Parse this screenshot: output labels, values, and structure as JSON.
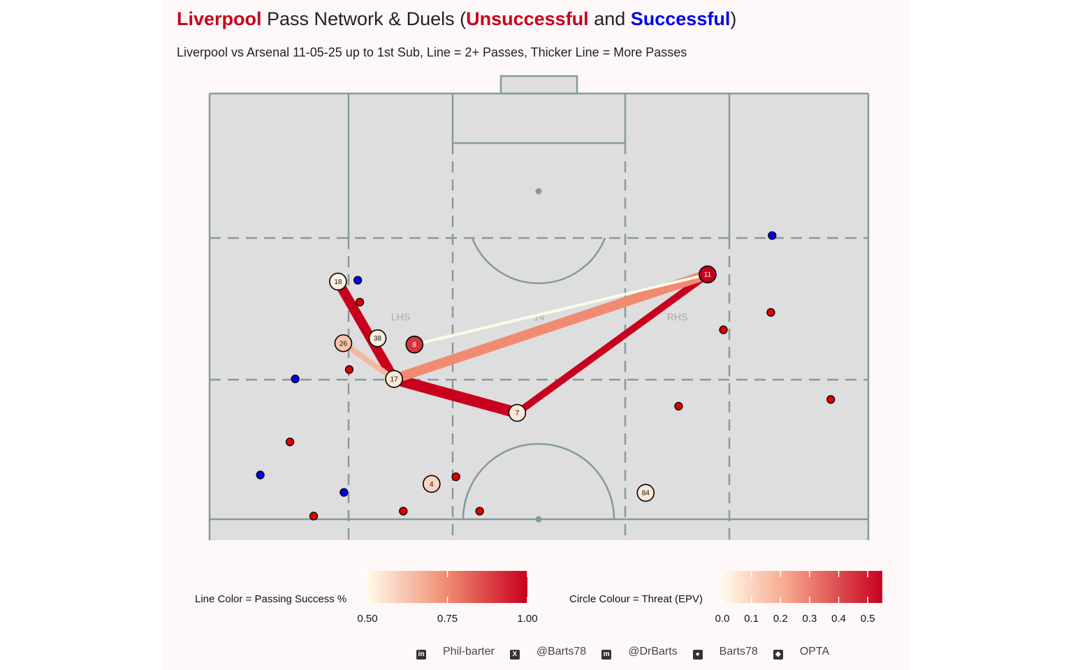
{
  "title": {
    "team": "Liverpool",
    "middle": " Pass Network & Duels (",
    "unsuccessful": "Unsuccessful",
    "and": " and ",
    "successful": "Successful",
    "close": ")",
    "team_color": "#c8001e",
    "successful_color": "#0000ee"
  },
  "subtitle": "Liverpool vs Arsenal 11-05-25 up to 1st Sub, Line = 2+ Passes, Thicker Line = More Passes",
  "chart_data": {
    "type": "network",
    "x_range": [
      0,
      100
    ],
    "y_range": [
      0,
      100
    ],
    "zone_labels": [
      {
        "text": "LHS",
        "x": 29,
        "y": 50
      },
      {
        "text": "14",
        "x": 50,
        "y": 50
      },
      {
        "text": "RHS",
        "x": 71,
        "y": 50
      }
    ],
    "players": [
      {
        "id": "18",
        "x": 19.5,
        "y": 57.9,
        "epv": 0.02
      },
      {
        "id": "38",
        "x": 25.5,
        "y": 45.2,
        "epv": 0.03
      },
      {
        "id": "26",
        "x": 20.3,
        "y": 44.1,
        "epv": 0.15
      },
      {
        "id": "8",
        "x": 31.1,
        "y": 43.8,
        "epv": 0.45
      },
      {
        "id": "17",
        "x": 28.0,
        "y": 36.1,
        "epv": 0.05
      },
      {
        "id": "7",
        "x": 46.7,
        "y": 28.5,
        "epv": 0.05
      },
      {
        "id": "11",
        "x": 75.6,
        "y": 59.5,
        "epv": 0.55
      },
      {
        "id": "4",
        "x": 33.7,
        "y": 12.6,
        "epv": 0.1
      },
      {
        "id": "84",
        "x": 66.2,
        "y": 10.6,
        "epv": 0.05
      }
    ],
    "passes": [
      {
        "from": "18",
        "to": "17",
        "passes": 7,
        "success": 1.0
      },
      {
        "from": "17",
        "to": "7",
        "passes": 8,
        "success": 1.0
      },
      {
        "from": "7",
        "to": "11",
        "passes": 5,
        "success": 1.0
      },
      {
        "from": "17",
        "to": "11",
        "passes": 7,
        "success": 0.75
      },
      {
        "from": "26",
        "to": "17",
        "passes": 4,
        "success": 0.65
      },
      {
        "from": "8",
        "to": "11",
        "passes": 2,
        "success": 0.5
      }
    ],
    "duels": [
      {
        "x": 22.5,
        "y": 58.2,
        "result": "Successful"
      },
      {
        "x": 13.0,
        "y": 36.1,
        "result": "Successful"
      },
      {
        "x": 85.4,
        "y": 68.2,
        "result": "Successful"
      },
      {
        "x": 7.7,
        "y": 14.6,
        "result": "Successful"
      },
      {
        "x": 20.4,
        "y": 10.7,
        "result": "Successful"
      },
      {
        "x": 22.8,
        "y": 53.3,
        "result": "Unsuccessful"
      },
      {
        "x": 21.2,
        "y": 38.2,
        "result": "Unsuccessful"
      },
      {
        "x": 12.2,
        "y": 22.0,
        "result": "Unsuccessful"
      },
      {
        "x": 15.8,
        "y": 5.4,
        "result": "Unsuccessful"
      },
      {
        "x": 29.4,
        "y": 6.5,
        "result": "Unsuccessful"
      },
      {
        "x": 37.4,
        "y": 14.2,
        "result": "Unsuccessful"
      },
      {
        "x": 41.0,
        "y": 6.5,
        "result": "Unsuccessful"
      },
      {
        "x": 71.2,
        "y": 30.0,
        "result": "Unsuccessful"
      },
      {
        "x": 78.0,
        "y": 47.1,
        "result": "Unsuccessful"
      },
      {
        "x": 85.2,
        "y": 51.0,
        "result": "Unsuccessful"
      },
      {
        "x": 94.3,
        "y": 31.5,
        "result": "Unsuccessful"
      }
    ],
    "legend_line": {
      "title": "Line Color = Passing Success %",
      "ticks": [
        "0.50",
        "0.75",
        "1.00"
      ],
      "range": [
        0.5,
        1.0
      ]
    },
    "legend_circle": {
      "title": "Circle Colour = Threat (EPV)",
      "ticks": [
        "0.0",
        "0.1",
        "0.2",
        "0.3",
        "0.4",
        "0.5"
      ],
      "range": [
        0,
        0.55
      ]
    }
  },
  "colors": {
    "pitch_fill": "#dedede",
    "pitch_line": "#869a9a",
    "successful": "#0000ee",
    "unsuccessful": "#e00000",
    "scale_low": "#fff8e8",
    "scale_high": "#c8001e"
  },
  "footer": [
    {
      "icon": "linkedin-icon",
      "text": "Phil-barter"
    },
    {
      "icon": "x-icon",
      "text": "@Barts78"
    },
    {
      "icon": "mastodon-icon",
      "text": "@DrBarts"
    },
    {
      "icon": "github-icon",
      "text": "Barts78"
    },
    {
      "icon": "dropbox-icon",
      "text": "OPTA"
    }
  ]
}
